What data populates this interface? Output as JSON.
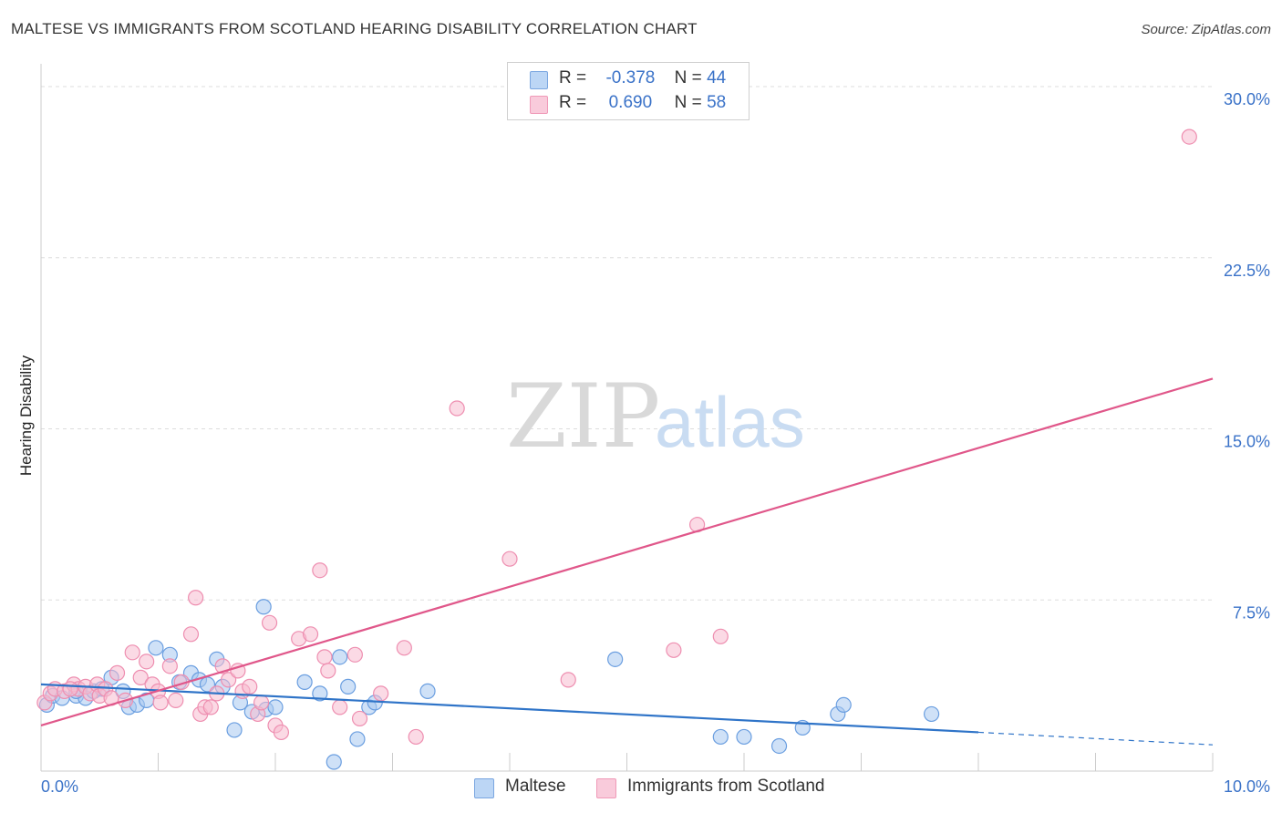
{
  "title": "MALTESE VS IMMIGRANTS FROM SCOTLAND HEARING DISABILITY CORRELATION CHART",
  "source": "Source: ZipAtlas.com",
  "watermark": {
    "zip": "ZIP",
    "atlas": "atlas"
  },
  "legend": {
    "rows": [
      {
        "r_label": "R =",
        "r_value": "-0.378",
        "n_label": "N =",
        "n_value": "44",
        "color": "#a8c8f0"
      },
      {
        "r_label": "R =",
        "r_value": "0.690",
        "n_label": "N =",
        "n_value": "58",
        "color": "#f7bcd0"
      }
    ]
  },
  "bottom_legend": [
    {
      "label": "Maltese",
      "color": "#a8c8f0"
    },
    {
      "label": "Immigrants from Scotland",
      "color": "#f7bcd0"
    }
  ],
  "chart_data": {
    "type": "scatter",
    "title": "MALTESE VS IMMIGRANTS FROM SCOTLAND HEARING DISABILITY CORRELATION CHART",
    "xlabel": "",
    "ylabel": "Hearing Disability",
    "xlim": [
      0,
      10
    ],
    "ylim": [
      0,
      31
    ],
    "x_tick_labels": [
      "0.0%",
      "10.0%"
    ],
    "y_ticks": [
      7.5,
      15.0,
      22.5,
      30.0
    ],
    "y_tick_labels": [
      "7.5%",
      "15.0%",
      "22.5%",
      "30.0%"
    ],
    "grid": "horizontal dashed",
    "legend_position": "top-center",
    "series": [
      {
        "name": "Maltese",
        "color": "#a8c8f0",
        "edge_color": "#6a9ee0",
        "trend_color": "#2f74c8",
        "trend": {
          "x0": 0,
          "y0": 3.8,
          "x1": 8.0,
          "y1": 1.7,
          "dash_to_x": 10,
          "dash_to_y": 1.15
        },
        "points": [
          [
            0.05,
            2.9
          ],
          [
            0.1,
            3.3
          ],
          [
            0.18,
            3.2
          ],
          [
            0.3,
            3.3
          ],
          [
            0.38,
            3.2
          ],
          [
            0.45,
            3.5
          ],
          [
            0.52,
            3.6
          ],
          [
            0.6,
            4.1
          ],
          [
            0.7,
            3.5
          ],
          [
            0.75,
            2.8
          ],
          [
            0.82,
            2.9
          ],
          [
            0.9,
            3.1
          ],
          [
            0.98,
            5.4
          ],
          [
            1.1,
            5.1
          ],
          [
            1.18,
            3.9
          ],
          [
            1.28,
            4.3
          ],
          [
            1.35,
            4.0
          ],
          [
            1.42,
            3.8
          ],
          [
            1.5,
            4.9
          ],
          [
            1.55,
            3.7
          ],
          [
            1.65,
            1.8
          ],
          [
            1.7,
            3.0
          ],
          [
            1.8,
            2.6
          ],
          [
            1.9,
            7.2
          ],
          [
            1.92,
            2.7
          ],
          [
            2.0,
            2.8
          ],
          [
            2.25,
            3.9
          ],
          [
            2.38,
            3.4
          ],
          [
            2.5,
            0.4
          ],
          [
            2.55,
            5.0
          ],
          [
            2.62,
            3.7
          ],
          [
            2.7,
            1.4
          ],
          [
            2.8,
            2.8
          ],
          [
            2.85,
            3.0
          ],
          [
            3.3,
            3.5
          ],
          [
            4.9,
            4.9
          ],
          [
            5.8,
            1.5
          ],
          [
            6.0,
            1.5
          ],
          [
            6.3,
            1.1
          ],
          [
            6.5,
            1.9
          ],
          [
            6.8,
            2.5
          ],
          [
            6.85,
            2.9
          ],
          [
            7.6,
            2.5
          ],
          [
            0.3,
            3.5
          ]
        ]
      },
      {
        "name": "Immigrants from Scotland",
        "color": "#f7bcd0",
        "edge_color": "#ee8eb0",
        "trend_color": "#e0578a",
        "trend": {
          "x0": 0,
          "y0": 2.0,
          "x1": 10,
          "y1": 17.2
        },
        "points": [
          [
            0.03,
            3.0
          ],
          [
            0.08,
            3.4
          ],
          [
            0.12,
            3.6
          ],
          [
            0.2,
            3.5
          ],
          [
            0.28,
            3.8
          ],
          [
            0.32,
            3.6
          ],
          [
            0.38,
            3.7
          ],
          [
            0.42,
            3.4
          ],
          [
            0.48,
            3.8
          ],
          [
            0.5,
            3.3
          ],
          [
            0.55,
            3.6
          ],
          [
            0.6,
            3.2
          ],
          [
            0.65,
            4.3
          ],
          [
            0.72,
            3.1
          ],
          [
            0.78,
            5.2
          ],
          [
            0.85,
            4.1
          ],
          [
            0.9,
            4.8
          ],
          [
            0.95,
            3.8
          ],
          [
            1.0,
            3.5
          ],
          [
            1.02,
            3.0
          ],
          [
            1.1,
            4.6
          ],
          [
            1.15,
            3.1
          ],
          [
            1.2,
            3.9
          ],
          [
            1.28,
            6.0
          ],
          [
            1.32,
            7.6
          ],
          [
            1.36,
            2.5
          ],
          [
            1.4,
            2.8
          ],
          [
            1.45,
            2.8
          ],
          [
            1.55,
            4.6
          ],
          [
            1.6,
            4.0
          ],
          [
            1.68,
            4.4
          ],
          [
            1.72,
            3.5
          ],
          [
            1.78,
            3.7
          ],
          [
            1.85,
            2.5
          ],
          [
            1.88,
            3.0
          ],
          [
            1.95,
            6.5
          ],
          [
            2.0,
            2.0
          ],
          [
            2.05,
            1.7
          ],
          [
            2.2,
            5.8
          ],
          [
            2.3,
            6.0
          ],
          [
            2.38,
            8.8
          ],
          [
            2.42,
            5.0
          ],
          [
            2.45,
            4.4
          ],
          [
            2.55,
            2.8
          ],
          [
            2.68,
            5.1
          ],
          [
            2.72,
            2.3
          ],
          [
            2.9,
            3.4
          ],
          [
            3.1,
            5.4
          ],
          [
            3.2,
            1.5
          ],
          [
            3.55,
            15.9
          ],
          [
            4.0,
            9.3
          ],
          [
            4.5,
            4.0
          ],
          [
            5.4,
            5.3
          ],
          [
            5.6,
            10.8
          ],
          [
            5.8,
            5.9
          ],
          [
            1.5,
            3.4
          ],
          [
            9.8,
            27.8
          ],
          [
            0.25,
            3.6
          ]
        ]
      }
    ]
  }
}
